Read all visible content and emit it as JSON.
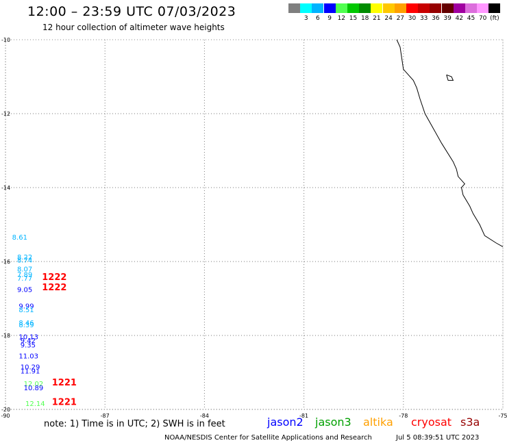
{
  "header": {
    "title": "12:00 – 23:59 UTC 07/03/2023",
    "subtitle": "12 hour collection of altimeter wave heights"
  },
  "legend": {
    "bins": [
      {
        "color": "#7f7f7f",
        "label": ""
      },
      {
        "color": "#00ffff",
        "label": "3"
      },
      {
        "color": "#00b4ff",
        "label": "6"
      },
      {
        "color": "#0000ff",
        "label": "9"
      },
      {
        "color": "#50ff50",
        "label": "12"
      },
      {
        "color": "#00c800",
        "label": "15"
      },
      {
        "color": "#008c00",
        "label": "18"
      },
      {
        "color": "#ffff00",
        "label": "21"
      },
      {
        "color": "#ffc800",
        "label": "24"
      },
      {
        "color": "#ffa000",
        "label": "27"
      },
      {
        "color": "#ff0000",
        "label": "30"
      },
      {
        "color": "#c80000",
        "label": "33"
      },
      {
        "color": "#960000",
        "label": "36"
      },
      {
        "color": "#640000",
        "label": "39"
      },
      {
        "color": "#a000a0",
        "label": "42"
      },
      {
        "color": "#dc6edc",
        "label": "45"
      },
      {
        "color": "#ff96ff",
        "label": "70"
      },
      {
        "color": "#000000",
        "label": "(ft)"
      }
    ]
  },
  "map_axes": {
    "lon_range": [
      -90,
      -75
    ],
    "lat_range": [
      -20,
      -10
    ],
    "lon_ticks": [
      -90,
      -87,
      -84,
      -81,
      -78,
      -75
    ],
    "lat_ticks": [
      -10,
      -12,
      -14,
      -16,
      -18,
      -20
    ],
    "lon_tick_labels": [
      "-90",
      "-87",
      "-84",
      "-81",
      "-78",
      "-75"
    ],
    "lat_tick_labels": [
      "-10",
      "-12",
      "-14",
      "-16",
      "-18",
      "-20"
    ],
    "grid": true
  },
  "coastline": [
    [
      -78.2,
      -10.0
    ],
    [
      -78.1,
      -10.2
    ],
    [
      -78.05,
      -10.5
    ],
    [
      -78.0,
      -10.8
    ],
    [
      -77.7,
      -11.1
    ],
    [
      -77.6,
      -11.3
    ],
    [
      -77.5,
      -11.6
    ],
    [
      -77.35,
      -12.0
    ],
    [
      -77.1,
      -12.4
    ],
    [
      -76.85,
      -12.8
    ],
    [
      -76.5,
      -13.3
    ],
    [
      -76.4,
      -13.5
    ],
    [
      -76.35,
      -13.7
    ],
    [
      -76.15,
      -13.9
    ],
    [
      -76.25,
      -14.0
    ],
    [
      -76.2,
      -14.2
    ],
    [
      -76.0,
      -14.5
    ],
    [
      -75.9,
      -14.7
    ],
    [
      -75.7,
      -15.0
    ],
    [
      -75.55,
      -15.3
    ],
    [
      -75.2,
      -15.5
    ],
    [
      -75.0,
      -15.6
    ]
  ],
  "island": [
    [
      -76.7,
      -10.95
    ],
    [
      -76.55,
      -11.0
    ],
    [
      -76.5,
      -11.1
    ],
    [
      -76.65,
      -11.1
    ],
    [
      -76.7,
      -10.95
    ]
  ],
  "observations": [
    {
      "lon": -89.8,
      "lat": -15.41,
      "text": "8.61",
      "color": "#00b4ff"
    },
    {
      "lon": -89.65,
      "lat": -15.94,
      "text": "8.22",
      "color": "#00b4ff"
    },
    {
      "lon": -89.65,
      "lat": -16.03,
      "text": "8.74",
      "color": "#00b4ff"
    },
    {
      "lon": -89.65,
      "lat": -16.27,
      "text": "8.07",
      "color": "#00b4ff"
    },
    {
      "lon": -89.65,
      "lat": -16.42,
      "text": "7.89",
      "color": "#00b4ff"
    },
    {
      "lon": -89.65,
      "lat": -16.52,
      "text": "7.77",
      "color": "#00b4ff"
    },
    {
      "lon": -89.65,
      "lat": -16.82,
      "text": "9.05",
      "color": "#0000ff"
    },
    {
      "lon": -89.6,
      "lat": -17.27,
      "text": "9.99",
      "color": "#0000ff"
    },
    {
      "lon": -89.6,
      "lat": -17.37,
      "text": "8.51",
      "color": "#00b4ff"
    },
    {
      "lon": -89.6,
      "lat": -17.72,
      "text": "8.46",
      "color": "#00b4ff"
    },
    {
      "lon": -89.6,
      "lat": -17.78,
      "text": "8.39",
      "color": "#00b4ff"
    },
    {
      "lon": -89.6,
      "lat": -18.1,
      "text": "10.13",
      "color": "#0000ff"
    },
    {
      "lon": -89.55,
      "lat": -18.2,
      "text": "9.42",
      "color": "#0000ff"
    },
    {
      "lon": -89.55,
      "lat": -18.32,
      "text": "9.35",
      "color": "#0000ff"
    },
    {
      "lon": -89.6,
      "lat": -18.62,
      "text": "11.03",
      "color": "#0000ff"
    },
    {
      "lon": -89.55,
      "lat": -18.92,
      "text": "10.29",
      "color": "#0000ff"
    },
    {
      "lon": -89.55,
      "lat": -19.03,
      "text": "11.91",
      "color": "#0000ff"
    },
    {
      "lon": -89.45,
      "lat": -19.37,
      "text": "12.02",
      "color": "#50ff50"
    },
    {
      "lon": -89.45,
      "lat": -19.48,
      "text": "10.89",
      "color": "#0000ff"
    },
    {
      "lon": -89.4,
      "lat": -19.91,
      "text": "12.14",
      "color": "#50ff50"
    }
  ],
  "time_labels": [
    {
      "lon": -88.9,
      "lat": -16.5,
      "text": "1222",
      "color": "#ff0000"
    },
    {
      "lon": -88.9,
      "lat": -16.78,
      "text": "1222",
      "color": "#ff0000"
    },
    {
      "lon": -88.6,
      "lat": -19.35,
      "text": "1221",
      "color": "#ff0000"
    },
    {
      "lon": -88.6,
      "lat": -19.88,
      "text": "1221",
      "color": "#ff0000"
    }
  ],
  "footer": {
    "note": "note: 1) Time is in UTC; 2) SWH is in feet",
    "satellites": [
      {
        "name": "jason2",
        "color": "#0000ff"
      },
      {
        "name": "jason3",
        "color": "#00a000"
      },
      {
        "name": "altika",
        "color": "#ffa000"
      },
      {
        "name": "cryosat",
        "color": "#ff0000"
      },
      {
        "name": "s3a",
        "color": "#960000"
      }
    ],
    "credit": "NOAA/NESDIS Center for Satellite Applications and Research",
    "timestamp": "Jul  5 08:39:51 UTC 2023"
  }
}
